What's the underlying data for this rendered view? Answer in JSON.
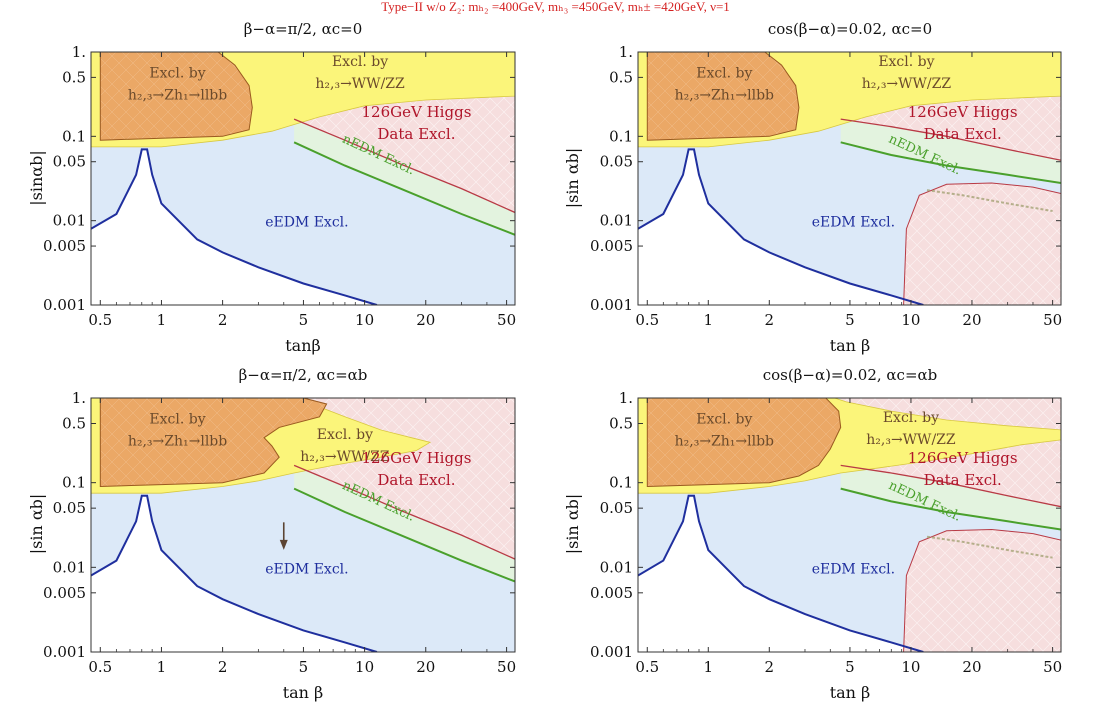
{
  "figure_title": "Type−II w/o Z₂: mₕ₂ =400GeV, mₕ₃ =450GeV, mₕ± =420GeV, ν=1",
  "colors": {
    "eEDM_fill": "#dce9f8",
    "eEDM_line": "#1f2f9e",
    "nEDM_fill": "#e3f3df",
    "nEDM_line": "#4aa02c",
    "higgs_fill": "#f6dede",
    "higgs_line": "#b83a45",
    "wwzz_fill": "#fbf57a",
    "zh_fill": "#eba866",
    "zh_line": "#9a5a20",
    "text_brown": "#6b4a2b",
    "text_red": "#b0162b",
    "text_blue": "#1f2f9e",
    "text_green": "#4aa02c",
    "arrow": "#5c4433"
  },
  "chart_data": [
    {
      "type": "region-plot",
      "title": "β−α=π/2, αc=0",
      "xlabel": "tanβ",
      "ylabel": "|sinαb|",
      "xscale": "log",
      "yscale": "log",
      "xlim": [
        0.45,
        55
      ],
      "ylim": [
        0.001,
        1.0
      ],
      "xticks": [
        "0.5",
        "1",
        "2",
        "5",
        "10",
        "20",
        "50"
      ],
      "yticks": [
        "0.001",
        "0.005",
        "0.01",
        "0.05",
        "0.1",
        "0.5",
        "1."
      ],
      "regions": {
        "eEDM": {
          "label": "eEDM Excl.",
          "boundary_tanb": [
            0.45,
            0.6,
            0.75,
            0.8,
            0.85,
            0.9,
            1.0,
            1.5,
            2,
            3,
            5,
            8,
            11.5
          ],
          "boundary_sinab": [
            0.008,
            0.012,
            0.035,
            0.07,
            0.07,
            0.035,
            0.016,
            0.006,
            0.0042,
            0.0028,
            0.0018,
            0.0013,
            0.001
          ],
          "excluded_side": "above"
        },
        "nEDM": {
          "label": "nEDM Excl.",
          "boundary_tanb": [
            4.5,
            8,
            15,
            30,
            55
          ],
          "boundary_sinab": [
            0.085,
            0.045,
            0.024,
            0.012,
            0.0068
          ]
        },
        "higgs_data": {
          "label": [
            "126GeV Higgs",
            "Data Excl."
          ],
          "boundary_tanb": [
            4.5,
            8,
            15,
            30,
            55
          ],
          "boundary_sinab": [
            0.16,
            0.09,
            0.047,
            0.024,
            0.0125
          ]
        },
        "WW_ZZ": {
          "label": [
            "Excl. by",
            "h₂,₃→WW/ZZ"
          ],
          "boundary_tanb": [
            0.45,
            1,
            2,
            3.5,
            6,
            10,
            20,
            40,
            55
          ],
          "boundary_sinab": [
            0.075,
            0.075,
            0.09,
            0.115,
            0.17,
            0.23,
            0.27,
            0.29,
            0.3
          ]
        },
        "Zh_llbb": {
          "label": [
            "Excl. by",
            "h₂,₃→Zh₁→llbb"
          ],
          "boundary_tanb": [
            0.5,
            1.0,
            2.0,
            2.7,
            2.8,
            2.7,
            2.3,
            1.9,
            0.5
          ],
          "boundary_sinab": [
            0.09,
            0.095,
            0.1,
            0.12,
            0.22,
            0.4,
            0.7,
            1.0,
            1.0
          ]
        }
      },
      "annotations": []
    },
    {
      "type": "region-plot",
      "title": "cos(β−α)=0.02, αc=0",
      "xlabel": "tan β",
      "ylabel": "|sin αb|",
      "xscale": "log",
      "yscale": "log",
      "xlim": [
        0.45,
        55
      ],
      "ylim": [
        0.001,
        1.0
      ],
      "xticks": [
        "0.5",
        "1",
        "2",
        "5",
        "10",
        "20",
        "50"
      ],
      "yticks": [
        "0.001",
        "0.005",
        "0.01",
        "0.05",
        "0.1",
        "0.5",
        "1."
      ],
      "regions": {
        "eEDM": {
          "label": "eEDM Excl.",
          "boundary_tanb": [
            0.45,
            0.6,
            0.75,
            0.8,
            0.85,
            0.9,
            1.0,
            1.5,
            2,
            3,
            5,
            8,
            11.5
          ],
          "boundary_sinab": [
            0.008,
            0.012,
            0.035,
            0.07,
            0.07,
            0.035,
            0.016,
            0.006,
            0.0042,
            0.0028,
            0.0018,
            0.0013,
            0.001
          ]
        },
        "nEDM": {
          "label": "nEDM Excl.",
          "boundary_tanb": [
            4.5,
            8,
            15,
            30,
            55
          ],
          "boundary_sinab": [
            0.085,
            0.06,
            0.045,
            0.035,
            0.028
          ]
        },
        "higgs_data": {
          "label": [
            "126GeV Higgs",
            "Data Excl."
          ],
          "boundary_tanb": [
            4.5,
            8,
            15,
            30,
            55
          ],
          "boundary_sinab": [
            0.16,
            0.13,
            0.1,
            0.07,
            0.052
          ],
          "island_tanb": [
            9.2,
            9.5,
            11,
            15,
            25,
            40,
            55
          ],
          "island_sinab": [
            0.001,
            0.008,
            0.02,
            0.027,
            0.028,
            0.025,
            0.021
          ]
        },
        "WW_ZZ": {
          "label": [
            "Excl. by",
            "h₂,₃→WW/ZZ"
          ],
          "boundary_tanb": [
            0.45,
            1,
            2,
            3.5,
            6,
            10,
            20,
            40,
            55
          ],
          "boundary_sinab": [
            0.075,
            0.075,
            0.09,
            0.115,
            0.17,
            0.23,
            0.27,
            0.29,
            0.3
          ]
        },
        "Zh_llbb": {
          "label": [
            "Excl. by",
            "h₂,₃→Zh₁→llbb"
          ],
          "boundary_tanb": [
            0.5,
            1.0,
            2.0,
            2.7,
            2.8,
            2.7,
            2.3,
            1.9,
            0.5
          ],
          "boundary_sinab": [
            0.09,
            0.095,
            0.1,
            0.12,
            0.22,
            0.4,
            0.7,
            1.0,
            1.0
          ]
        }
      },
      "annotations": []
    },
    {
      "type": "region-plot",
      "title": "β−α=π/2, αc=αb",
      "xlabel": "tan β",
      "ylabel": "|sin αb|",
      "xscale": "log",
      "yscale": "log",
      "xlim": [
        0.45,
        55
      ],
      "ylim": [
        0.001,
        1.0
      ],
      "xticks": [
        "0.5",
        "1",
        "2",
        "5",
        "10",
        "20",
        "50"
      ],
      "yticks": [
        "0.001",
        "0.005",
        "0.01",
        "0.05",
        "0.1",
        "0.5",
        "1."
      ],
      "regions": {
        "eEDM": {
          "label": "eEDM Excl.",
          "boundary_tanb": [
            0.45,
            0.6,
            0.75,
            0.8,
            0.85,
            0.9,
            1.0,
            1.5,
            2,
            3,
            5,
            8,
            11.5
          ],
          "boundary_sinab": [
            0.008,
            0.012,
            0.035,
            0.07,
            0.07,
            0.035,
            0.016,
            0.006,
            0.0042,
            0.0028,
            0.0018,
            0.0013,
            0.001
          ]
        },
        "nEDM": {
          "label": "nEDM Excl.",
          "boundary_tanb": [
            4.5,
            8,
            15,
            30,
            55
          ],
          "boundary_sinab": [
            0.085,
            0.045,
            0.024,
            0.012,
            0.0068
          ]
        },
        "higgs_data": {
          "label": [
            "126GeV Higgs",
            "Data Excl."
          ],
          "boundary_tanb": [
            4.5,
            8,
            15,
            30,
            55
          ],
          "boundary_sinab": [
            0.16,
            0.09,
            0.047,
            0.024,
            0.0125
          ]
        },
        "WW_ZZ": {
          "label": [
            "Excl. by",
            "h₂,₃→WW/ZZ"
          ],
          "boundary_tanb": [
            0.45,
            1,
            2,
            3,
            4.5,
            7,
            12,
            18,
            21,
            17,
            12,
            8,
            5.5,
            5,
            4,
            0.45
          ],
          "boundary_sinab": [
            0.075,
            0.075,
            0.09,
            0.105,
            0.13,
            0.16,
            0.2,
            0.24,
            0.3,
            0.34,
            0.42,
            0.6,
            0.85,
            1.0,
            1.0,
            1.0
          ]
        },
        "Zh_llbb": {
          "label": [
            "Excl. by",
            "h₂,₃→Zh₁→llbb"
          ],
          "boundary_tanb": [
            0.5,
            1.0,
            2.0,
            3.2,
            3.8,
            3.5,
            3.2,
            3.8,
            6.0,
            6.5,
            5.0,
            0.5
          ],
          "boundary_sinab": [
            0.09,
            0.095,
            0.1,
            0.13,
            0.2,
            0.27,
            0.34,
            0.45,
            0.6,
            0.85,
            1.0,
            1.0
          ]
        }
      },
      "annotations": [
        {
          "type": "arrow",
          "at_tanb": 4.0,
          "from_sinab": 0.034,
          "to_sinab": 0.017
        }
      ]
    },
    {
      "type": "region-plot",
      "title": "cos(β−α)=0.02, αc=αb",
      "xlabel": "tan β",
      "ylabel": "|sin αb|",
      "xscale": "log",
      "yscale": "log",
      "xlim": [
        0.45,
        55
      ],
      "ylim": [
        0.001,
        1.0
      ],
      "xticks": [
        "0.5",
        "1",
        "2",
        "5",
        "10",
        "20",
        "50"
      ],
      "yticks": [
        "0.001",
        "0.005",
        "0.01",
        "0.05",
        "0.1",
        "0.5",
        "1."
      ],
      "regions": {
        "eEDM": {
          "label": "eEDM Excl.",
          "boundary_tanb": [
            0.45,
            0.6,
            0.75,
            0.8,
            0.85,
            0.9,
            1.0,
            1.5,
            2,
            3,
            5,
            8,
            11.5
          ],
          "boundary_sinab": [
            0.008,
            0.012,
            0.035,
            0.07,
            0.07,
            0.035,
            0.016,
            0.006,
            0.0042,
            0.0028,
            0.0018,
            0.0013,
            0.001
          ]
        },
        "nEDM": {
          "label": "nEDM Excl.",
          "boundary_tanb": [
            4.5,
            8,
            15,
            30,
            55
          ],
          "boundary_sinab": [
            0.085,
            0.06,
            0.045,
            0.035,
            0.028
          ]
        },
        "higgs_data": {
          "label": [
            "126GeV Higgs",
            "Data Excl."
          ],
          "boundary_tanb": [
            4.5,
            8,
            15,
            30,
            55
          ],
          "boundary_sinab": [
            0.16,
            0.13,
            0.1,
            0.07,
            0.052
          ],
          "island_tanb": [
            9.2,
            9.5,
            11,
            15,
            25,
            40,
            55
          ],
          "island_sinab": [
            0.001,
            0.008,
            0.02,
            0.027,
            0.028,
            0.025,
            0.021
          ]
        },
        "WW_ZZ": {
          "label": [
            "Excl. by",
            "h₂,₃→WW/ZZ"
          ],
          "boundary_tanb": [
            0.45,
            1,
            2,
            3,
            4.5,
            7,
            12,
            20,
            35,
            55,
            55,
            30,
            15,
            8,
            4.8,
            4.2,
            0.45
          ],
          "boundary_sinab": [
            0.075,
            0.075,
            0.09,
            0.105,
            0.13,
            0.15,
            0.18,
            0.22,
            0.28,
            0.32,
            0.42,
            0.47,
            0.55,
            0.7,
            0.9,
            1.0,
            1.0
          ]
        },
        "Zh_llbb": {
          "label": [
            "Excl. by",
            "h₂,₃→Zh₁→llbb"
          ],
          "boundary_tanb": [
            0.5,
            1.0,
            2.0,
            2.8,
            3.5,
            4.0,
            4.5,
            4.4,
            3.8,
            0.5
          ],
          "boundary_sinab": [
            0.09,
            0.095,
            0.1,
            0.12,
            0.16,
            0.25,
            0.45,
            0.7,
            1.0,
            1.0
          ]
        }
      },
      "annotations": []
    }
  ]
}
